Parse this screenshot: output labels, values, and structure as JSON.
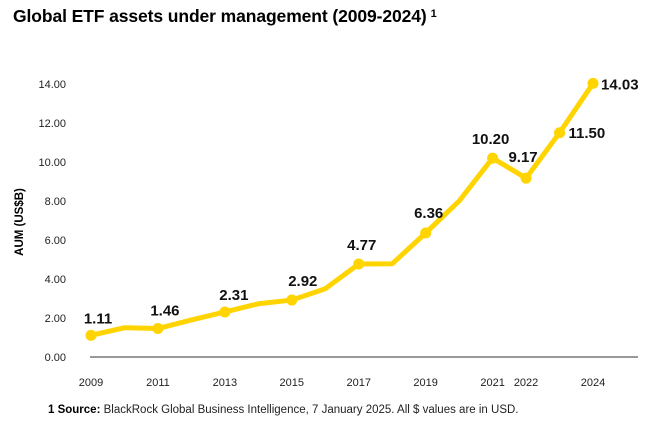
{
  "title": "Global ETF assets under management (2009-2024)",
  "title_note": "1",
  "source": {
    "prefix": "1 Source:",
    "text": "BlackRock Global Business Intelligence, 7 January 2025. All $ values are in USD."
  },
  "colors": {
    "line": "#FFD400",
    "axis": "#333333",
    "text": "#111111"
  },
  "chart_data": {
    "type": "line",
    "title": "Global ETF assets under management (2009-2024)",
    "xlabel": "",
    "ylabel": "AUM (US$B)",
    "ylim": [
      0,
      14
    ],
    "yticks": [
      "0.00",
      "2.00",
      "4.00",
      "6.00",
      "8.00",
      "10.00",
      "12.00",
      "14.00"
    ],
    "xticks": [
      "2009",
      "2011",
      "2013",
      "2015",
      "2017",
      "2019",
      "2021",
      "2022",
      "2024"
    ],
    "grid": false,
    "x": [
      2009,
      2010,
      2011,
      2012,
      2013,
      2014,
      2015,
      2016,
      2017,
      2018,
      2019,
      2020,
      2021,
      2022,
      2023,
      2024
    ],
    "series": [
      {
        "name": "AUM (US$B)",
        "values": [
          1.11,
          1.5,
          1.46,
          1.9,
          2.31,
          2.73,
          2.92,
          3.5,
          4.77,
          4.78,
          6.36,
          8.0,
          10.2,
          9.17,
          11.5,
          14.03
        ]
      }
    ],
    "data_labels": [
      {
        "x": 2009,
        "text": "1.11"
      },
      {
        "x": 2011,
        "text": "1.46"
      },
      {
        "x": 2013,
        "text": "2.31"
      },
      {
        "x": 2015,
        "text": "2.92"
      },
      {
        "x": 2017,
        "text": "4.77"
      },
      {
        "x": 2019,
        "text": "6.36"
      },
      {
        "x": 2021,
        "text": "10.20"
      },
      {
        "x": 2022,
        "text": "9.17"
      },
      {
        "x": 2023,
        "text": "11.50"
      },
      {
        "x": 2024,
        "text": "14.03"
      }
    ]
  }
}
